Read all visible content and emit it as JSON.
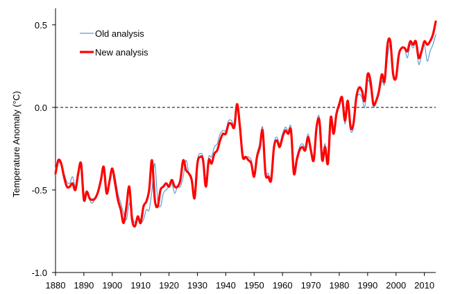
{
  "chart_data": {
    "type": "line",
    "title": "",
    "xlabel": "",
    "ylabel": "Temperature Anomaly (°C)",
    "xlim": [
      1880,
      2014
    ],
    "ylim": [
      -1.0,
      0.6
    ],
    "x_ticks": [
      1880,
      1890,
      1900,
      1910,
      1920,
      1930,
      1940,
      1950,
      1960,
      1970,
      1980,
      1990,
      2000,
      2010
    ],
    "x_tick_labels": [
      "1880",
      "1890",
      "1900",
      "1910",
      "1920",
      "1930",
      "1940",
      "1950",
      "1960",
      "1970",
      "1980",
      "1990",
      "2000",
      "2010"
    ],
    "y_ticks": [
      -1.0,
      -0.5,
      0.0,
      0.5
    ],
    "y_tick_labels": [
      "-1.0",
      "-0.5",
      "0.0",
      "0.5"
    ],
    "reference_line": {
      "y": 0.0,
      "style": "dashed"
    },
    "grid": false,
    "legend_position": "top-left",
    "x": [
      1880,
      1881,
      1882,
      1883,
      1884,
      1885,
      1886,
      1887,
      1888,
      1889,
      1890,
      1891,
      1892,
      1893,
      1894,
      1895,
      1896,
      1897,
      1898,
      1899,
      1900,
      1901,
      1902,
      1903,
      1904,
      1905,
      1906,
      1907,
      1908,
      1909,
      1910,
      1911,
      1912,
      1913,
      1914,
      1915,
      1916,
      1917,
      1918,
      1919,
      1920,
      1921,
      1922,
      1923,
      1924,
      1925,
      1926,
      1927,
      1928,
      1929,
      1930,
      1931,
      1932,
      1933,
      1934,
      1935,
      1936,
      1937,
      1938,
      1939,
      1940,
      1941,
      1942,
      1943,
      1944,
      1945,
      1946,
      1947,
      1948,
      1949,
      1950,
      1951,
      1952,
      1953,
      1954,
      1955,
      1956,
      1957,
      1958,
      1959,
      1960,
      1961,
      1962,
      1963,
      1964,
      1965,
      1966,
      1967,
      1968,
      1969,
      1970,
      1971,
      1972,
      1973,
      1974,
      1975,
      1976,
      1977,
      1978,
      1979,
      1980,
      1981,
      1982,
      1983,
      1984,
      1985,
      1986,
      1987,
      1988,
      1989,
      1990,
      1991,
      1992,
      1993,
      1994,
      1995,
      1996,
      1997,
      1998,
      1999,
      2000,
      2001,
      2002,
      2003,
      2004,
      2005,
      2006,
      2007,
      2008,
      2009,
      2010,
      2011,
      2012,
      2013,
      2014
    ],
    "series": [
      {
        "name": "Old analysis",
        "color": "#5b9bd5",
        "line_width": 1.2,
        "values": [
          -0.37,
          -0.33,
          -0.35,
          -0.4,
          -0.45,
          -0.46,
          -0.42,
          -0.48,
          -0.4,
          -0.35,
          -0.55,
          -0.52,
          -0.56,
          -0.58,
          -0.55,
          -0.52,
          -0.45,
          -0.36,
          -0.5,
          -0.46,
          -0.38,
          -0.42,
          -0.52,
          -0.58,
          -0.64,
          -0.68,
          -0.58,
          -0.66,
          -0.7,
          -0.68,
          -0.7,
          -0.68,
          -0.62,
          -0.62,
          -0.5,
          -0.34,
          -0.56,
          -0.6,
          -0.52,
          -0.5,
          -0.48,
          -0.46,
          -0.52,
          -0.48,
          -0.48,
          -0.42,
          -0.32,
          -0.4,
          -0.42,
          -0.52,
          -0.32,
          -0.28,
          -0.3,
          -0.44,
          -0.3,
          -0.3,
          -0.24,
          -0.22,
          -0.16,
          -0.14,
          -0.14,
          -0.08,
          -0.08,
          -0.1,
          0.01,
          -0.1,
          -0.28,
          -0.3,
          -0.3,
          -0.32,
          -0.4,
          -0.28,
          -0.22,
          -0.12,
          -0.38,
          -0.4,
          -0.42,
          -0.22,
          -0.18,
          -0.22,
          -0.16,
          -0.12,
          -0.14,
          -0.12,
          -0.36,
          -0.3,
          -0.24,
          -0.22,
          -0.24,
          -0.16,
          -0.24,
          -0.3,
          -0.1,
          -0.06,
          -0.28,
          -0.22,
          -0.32,
          -0.08,
          -0.14,
          -0.04,
          0.0,
          0.04,
          -0.1,
          0.02,
          -0.14,
          -0.12,
          0.04,
          0.08,
          0.06,
          0.0,
          0.16,
          0.12,
          0.0,
          0.04,
          0.08,
          0.16,
          0.14,
          0.3,
          0.38,
          0.2,
          0.18,
          0.3,
          0.36,
          0.36,
          0.3,
          0.38,
          0.36,
          0.38,
          0.26,
          0.32,
          0.38,
          0.28,
          0.34,
          0.38,
          0.44
        ]
      },
      {
        "name": "New analysis",
        "color": "#ff0000",
        "line_width": 3.2,
        "values": [
          -0.4,
          -0.32,
          -0.34,
          -0.42,
          -0.48,
          -0.48,
          -0.46,
          -0.5,
          -0.4,
          -0.34,
          -0.56,
          -0.51,
          -0.55,
          -0.56,
          -0.55,
          -0.51,
          -0.44,
          -0.36,
          -0.52,
          -0.45,
          -0.37,
          -0.46,
          -0.56,
          -0.62,
          -0.7,
          -0.6,
          -0.48,
          -0.68,
          -0.72,
          -0.66,
          -0.7,
          -0.6,
          -0.57,
          -0.5,
          -0.32,
          -0.56,
          -0.6,
          -0.5,
          -0.48,
          -0.46,
          -0.48,
          -0.44,
          -0.48,
          -0.48,
          -0.44,
          -0.32,
          -0.38,
          -0.4,
          -0.44,
          -0.55,
          -0.34,
          -0.3,
          -0.32,
          -0.48,
          -0.32,
          -0.34,
          -0.28,
          -0.26,
          -0.2,
          -0.16,
          -0.16,
          -0.1,
          -0.1,
          -0.12,
          0.02,
          -0.12,
          -0.3,
          -0.3,
          -0.32,
          -0.34,
          -0.42,
          -0.3,
          -0.24,
          -0.14,
          -0.4,
          -0.42,
          -0.44,
          -0.24,
          -0.2,
          -0.24,
          -0.18,
          -0.14,
          -0.16,
          -0.14,
          -0.4,
          -0.32,
          -0.26,
          -0.24,
          -0.26,
          -0.18,
          -0.26,
          -0.32,
          -0.12,
          -0.08,
          -0.32,
          -0.24,
          -0.34,
          -0.06,
          -0.16,
          -0.04,
          0.02,
          0.06,
          -0.08,
          0.04,
          -0.12,
          -0.1,
          0.06,
          0.12,
          0.1,
          0.04,
          0.2,
          0.16,
          0.02,
          0.04,
          0.1,
          0.2,
          0.16,
          0.38,
          0.4,
          0.2,
          0.18,
          0.32,
          0.36,
          0.36,
          0.34,
          0.4,
          0.38,
          0.4,
          0.3,
          0.34,
          0.4,
          0.38,
          0.4,
          0.44,
          0.52
        ]
      }
    ]
  }
}
